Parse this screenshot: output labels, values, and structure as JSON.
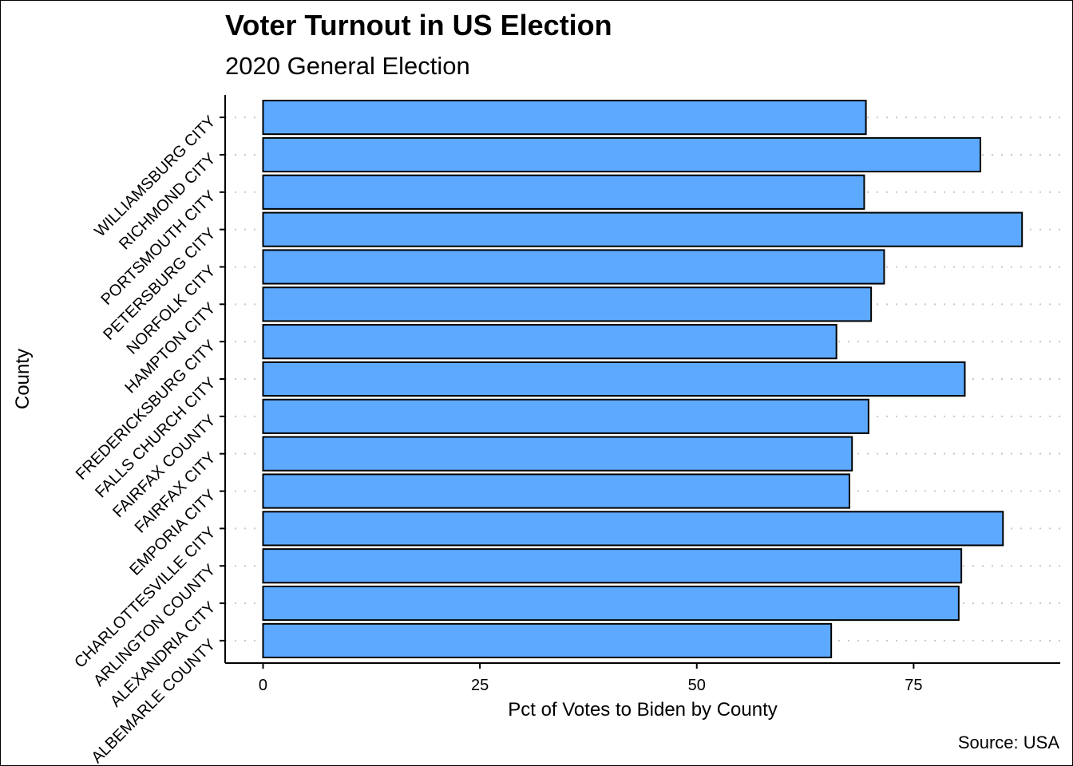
{
  "chart_data": {
    "type": "bar",
    "orientation": "horizontal",
    "title": "Voter Turnout in US Election",
    "subtitle": "2020 General Election",
    "xlabel": "Pct of Votes to Biden by County",
    "ylabel": "County",
    "caption": "Source: USA",
    "categories": [
      "ALBEMARLE COUNTY",
      "ALEXANDRIA CITY",
      "ARLINGTON COUNTY",
      "CHARLOTTESVILLE CITY",
      "EMPORIA CITY",
      "FAIRFAX CITY",
      "FAIRFAX COUNTY",
      "FALLS CHURCH CITY",
      "FREDERICKSBURG CITY",
      "HAMPTON CITY",
      "NORFOLK CITY",
      "PETERSBURG CITY",
      "PORTSMOUTH CITY",
      "RICHMOND CITY",
      "WILLIAMSBURG CITY"
    ],
    "values": [
      65.5,
      80.2,
      80.5,
      85.3,
      67.6,
      67.9,
      69.8,
      80.9,
      66.1,
      70.1,
      71.6,
      87.5,
      69.3,
      82.7,
      69.5
    ],
    "xticks": [
      0,
      25,
      50,
      75
    ],
    "xtick_labels": [
      "0",
      "25",
      "50",
      "75"
    ],
    "xlim": [
      -4.37,
      91.9
    ],
    "bar_color": "#5CA9FF",
    "bar_outline_color": "#000000",
    "grid": "horizontal dotted gridlines at each category",
    "legend": "none"
  }
}
